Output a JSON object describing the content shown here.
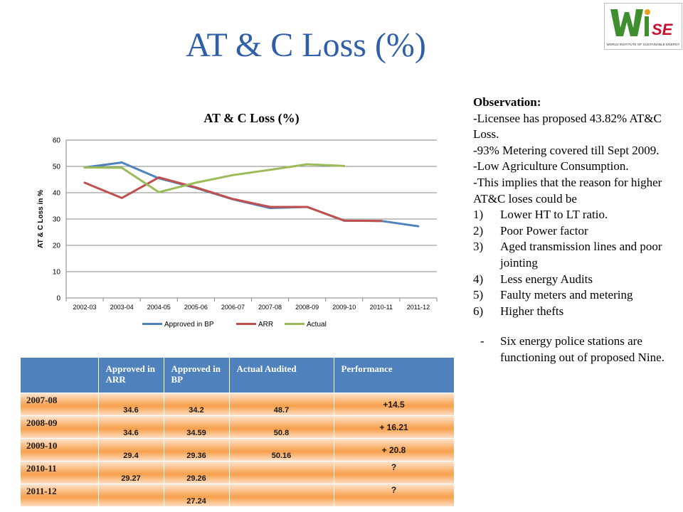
{
  "page": {
    "title": "AT & C Loss (%)"
  },
  "logo": {
    "text": "WISE",
    "caption": "WORLD INSTITUTE OF SUSTAINABLE ENERGY"
  },
  "chart_data": {
    "type": "line",
    "title": "AT & C Loss (%)",
    "xlabel": "",
    "ylabel": "AT & C Loss in %",
    "ylim": [
      0,
      60
    ],
    "yticks": [
      0,
      10,
      20,
      30,
      40,
      50,
      60
    ],
    "grid": true,
    "legend_position": "bottom",
    "categories": [
      "2002-03",
      "2003-04",
      "2004-05",
      "2005-06",
      "2006-07",
      "2007-08",
      "2008-09",
      "2009-10",
      "2010-11",
      "2011-12"
    ],
    "series": [
      {
        "name": "Approved in BP",
        "color": "#4f81bd",
        "values": [
          49.6,
          51.5,
          45.5,
          41.8,
          37.5,
          34.2,
          34.59,
          29.36,
          29.26,
          27.24
        ]
      },
      {
        "name": "ARR",
        "color": "#c0504d",
        "values": [
          43.8,
          38.0,
          45.8,
          42.0,
          37.6,
          34.6,
          34.6,
          29.4,
          29.27,
          null
        ]
      },
      {
        "name": "Actual",
        "color": "#9bbb59",
        "values": [
          49.6,
          49.5,
          40.2,
          43.8,
          46.7,
          48.7,
          50.8,
          50.16,
          null,
          null
        ]
      }
    ]
  },
  "observation": {
    "heading": "Observation:",
    "lines": [
      "-Licensee has proposed 43.82% AT&C Loss.",
      "-93% Metering covered till  Sept 2009.",
      "-Low Agriculture Consumption.",
      "-This implies that the reason for higher AT&C loses could be"
    ],
    "reasons": [
      {
        "num": "1)",
        "text": "Lower HT to LT ratio."
      },
      {
        "num": "2)",
        "text": "Poor Power factor"
      },
      {
        "num": "3)",
        "text": "Aged  transmission lines and poor jointing"
      },
      {
        "num": "4)",
        "text": "Less  energy Audits"
      },
      {
        "num": "5)",
        "text": "Faulty meters and metering"
      },
      {
        "num": "6)",
        "text": "Higher thefts"
      }
    ],
    "note": {
      "num": "-",
      "text": "Six energy police stations are functioning out of proposed  Nine."
    }
  },
  "table": {
    "headers": [
      "",
      "Approved in ARR",
      "Approved in BP",
      "Actual Audited",
      "Performance"
    ],
    "rows": [
      [
        "2007-08",
        "34.6",
        "34.2",
        "48.7",
        "+14.5"
      ],
      [
        "2008-09",
        "34.6",
        "34.59",
        "50.8",
        "+ 16.21"
      ],
      [
        "2009-10",
        "29.4",
        "29.36",
        "50.16",
        "+ 20.8"
      ],
      [
        "2010-11",
        "29.27",
        "29.26",
        "",
        "?"
      ],
      [
        "2011-12",
        "",
        "27.24",
        "",
        "?"
      ]
    ]
  }
}
